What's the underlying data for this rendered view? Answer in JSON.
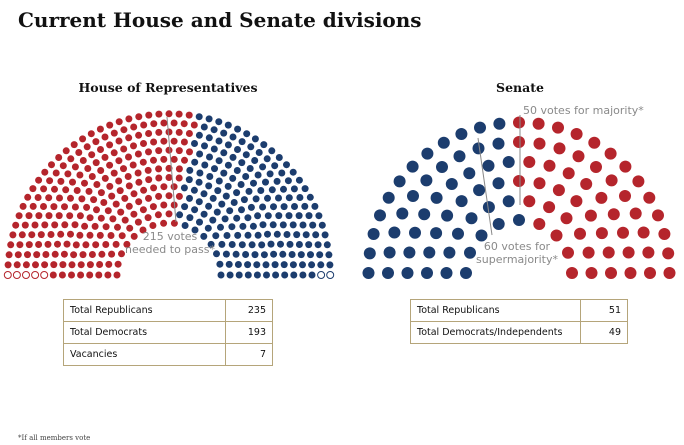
{
  "title": "Current House and Senate divisions",
  "footnote": "*If all members vote",
  "chart_data": [
    {
      "type": "parliament",
      "title": "House of Representatives",
      "series": [
        {
          "name": "Total Republicans",
          "value": 235,
          "color": "#b5252c"
        },
        {
          "name": "Total Democrats",
          "value": 193,
          "color": "#1c3d6e"
        },
        {
          "name": "Vacancies",
          "value": 7,
          "color": "#ffffff"
        }
      ],
      "annotations": [
        {
          "text_lines": [
            "215 votes",
            "needed to pass*"
          ]
        }
      ]
    },
    {
      "type": "parliament",
      "title": "Senate",
      "series": [
        {
          "name": "Total Republicans",
          "value": 51,
          "color": "#b5252c"
        },
        {
          "name": "Total Democrats/Independents",
          "value": 49,
          "color": "#1c3d6e"
        }
      ],
      "annotations": [
        {
          "text_lines": [
            "50 votes for majority*"
          ]
        },
        {
          "text_lines": [
            "60 votes for",
            "supermajority*"
          ]
        }
      ]
    }
  ],
  "tables": {
    "house": [
      {
        "label": "Total Republicans",
        "value": "235"
      },
      {
        "label": "Total Democrats",
        "value": "193"
      },
      {
        "label": "Vacancies",
        "value": "7"
      }
    ],
    "senate": [
      {
        "label": "Total Republicans",
        "value": "51"
      },
      {
        "label": "Total Democrats/Independents",
        "value": "49"
      }
    ]
  }
}
